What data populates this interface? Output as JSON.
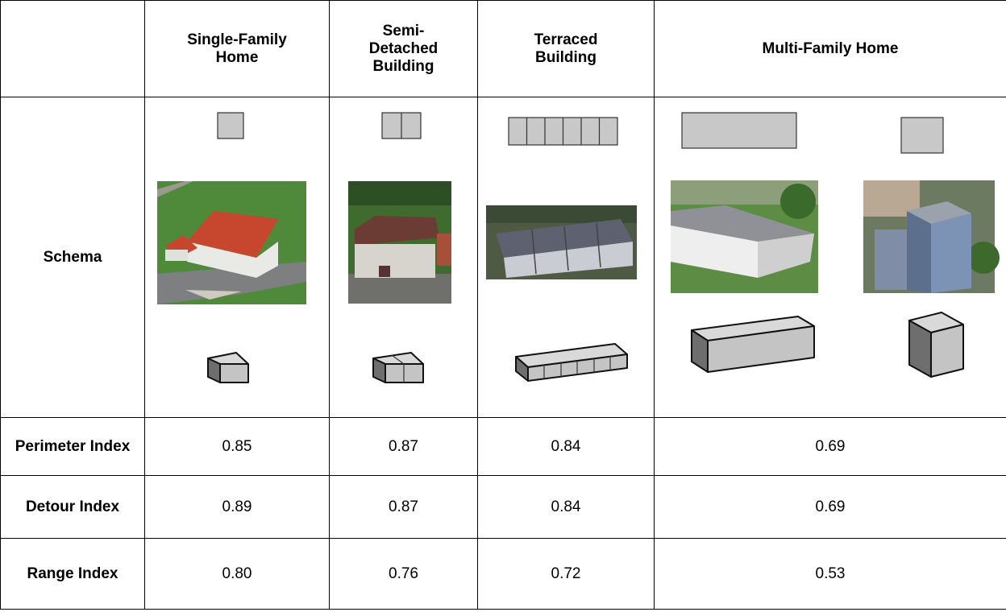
{
  "table": {
    "header": [
      "Single-Family Home",
      "Semi-Detached Building",
      "Terraced Building",
      "Multi-Family Home"
    ],
    "schema_label": "Schema",
    "rows": [
      {
        "label": "Perimeter Index",
        "values": [
          "0.85",
          "0.87",
          "0.84",
          "0.69"
        ]
      },
      {
        "label": "Detour Index",
        "values": [
          "0.89",
          "0.87",
          "0.84",
          "0.69"
        ]
      },
      {
        "label": "Range Index",
        "values": [
          "0.80",
          "0.76",
          "0.72",
          "0.53"
        ]
      }
    ]
  }
}
